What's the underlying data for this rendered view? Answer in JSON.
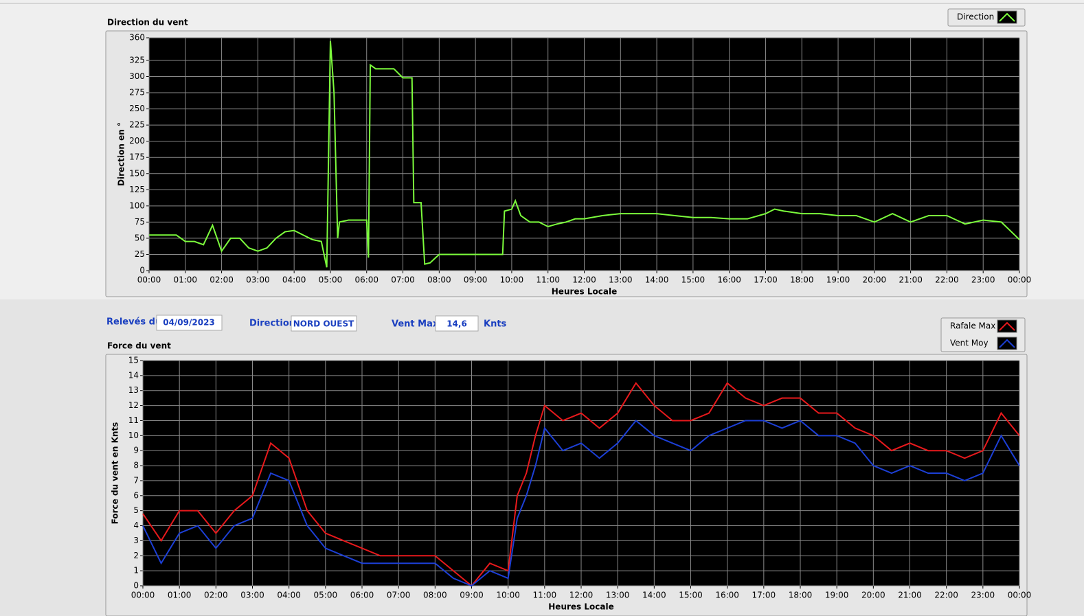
{
  "chart_data": [
    {
      "type": "line",
      "title": "Direction du vent",
      "ylabel": "Direction en °",
      "xlabel": "Heures Locale",
      "x": [
        0,
        0.25,
        0.5,
        0.75,
        1,
        1.25,
        1.5,
        1.75,
        2,
        2.25,
        2.5,
        2.75,
        3,
        3.25,
        3.5,
        3.75,
        4,
        4.25,
        4.5,
        4.75,
        4.9,
        5,
        5.1,
        5.2,
        5.25,
        5.5,
        5.75,
        6,
        6.05,
        6.1,
        6.25,
        6.5,
        6.75,
        7,
        7.25,
        7.3,
        7.5,
        7.6,
        7.75,
        8,
        8.5,
        9,
        9.5,
        9.75,
        9.8,
        10,
        10.1,
        10.25,
        10.5,
        10.75,
        11,
        11.25,
        11.5,
        11.75,
        12,
        12.5,
        13,
        13.5,
        14,
        14.5,
        15,
        15.5,
        16,
        16.5,
        17,
        17.25,
        17.5,
        18,
        18.5,
        19,
        19.5,
        20,
        20.5,
        21,
        21.5,
        22,
        22.5,
        23,
        23.5,
        24
      ],
      "series": [
        {
          "name": "Direction",
          "color": "#7cfc3c",
          "values": [
            55,
            55,
            55,
            55,
            45,
            45,
            40,
            70,
            30,
            50,
            50,
            35,
            30,
            35,
            50,
            60,
            62,
            55,
            48,
            45,
            5,
            355,
            275,
            50,
            75,
            78,
            78,
            78,
            20,
            318,
            312,
            312,
            312,
            298,
            298,
            105,
            105,
            10,
            12,
            25,
            25,
            25,
            25,
            25,
            92,
            95,
            108,
            85,
            75,
            75,
            68,
            72,
            75,
            80,
            80,
            85,
            88,
            88,
            88,
            85,
            82,
            82,
            80,
            80,
            88,
            95,
            92,
            88,
            88,
            85,
            85,
            75,
            88,
            75,
            85,
            85,
            72,
            78,
            75,
            48
          ]
        }
      ],
      "xlim": [
        0,
        24
      ],
      "ylim": [
        0,
        360
      ],
      "xticks": [
        {
          "value": 0,
          "label": "00:00"
        },
        {
          "value": 1,
          "label": "01:00"
        },
        {
          "value": 2,
          "label": "02:00"
        },
        {
          "value": 3,
          "label": "03:00"
        },
        {
          "value": 4,
          "label": "04:00"
        },
        {
          "value": 5,
          "label": "05:00"
        },
        {
          "value": 6,
          "label": "06:00"
        },
        {
          "value": 7,
          "label": "07:00"
        },
        {
          "value": 8,
          "label": "08:00"
        },
        {
          "value": 9,
          "label": "09:00"
        },
        {
          "value": 10,
          "label": "10:00"
        },
        {
          "value": 11,
          "label": "11:00"
        },
        {
          "value": 12,
          "label": "12:00"
        },
        {
          "value": 13,
          "label": "13:00"
        },
        {
          "value": 14,
          "label": "14:00"
        },
        {
          "value": 15,
          "label": "15:00"
        },
        {
          "value": 16,
          "label": "16:00"
        },
        {
          "value": 17,
          "label": "17:00"
        },
        {
          "value": 18,
          "label": "18:00"
        },
        {
          "value": 19,
          "label": "19:00"
        },
        {
          "value": 20,
          "label": "20:00"
        },
        {
          "value": 21,
          "label": "21:00"
        },
        {
          "value": 22,
          "label": "22:00"
        },
        {
          "value": 23,
          "label": "23:00"
        },
        {
          "value": 24,
          "label": "00:00"
        }
      ],
      "yticks": [
        0,
        25,
        50,
        75,
        100,
        125,
        150,
        175,
        200,
        225,
        250,
        275,
        300,
        325,
        360
      ],
      "grid": true
    },
    {
      "type": "line",
      "title": "Force du vent",
      "ylabel": "Force du vent en Knts",
      "xlabel": "Heures Locale",
      "x": [
        0,
        0.5,
        1,
        1.5,
        2,
        2.5,
        3,
        3.5,
        4,
        4.5,
        5,
        5.5,
        6,
        6.5,
        7,
        7.5,
        8,
        8.5,
        9,
        9.5,
        10,
        10.25,
        10.5,
        10.75,
        11,
        11.5,
        12,
        12.5,
        13,
        13.5,
        14,
        14.5,
        15,
        15.5,
        16,
        16.5,
        17,
        17.5,
        18,
        18.5,
        19,
        19.5,
        20,
        20.5,
        21,
        21.5,
        22,
        22.5,
        23,
        23.5,
        24
      ],
      "series": [
        {
          "name": "Rafale Max",
          "color": "#e8191c",
          "values": [
            4.8,
            3,
            5,
            5,
            3.5,
            5,
            6,
            9.5,
            8.5,
            5,
            3.5,
            3,
            2.5,
            2,
            2,
            2,
            2,
            1,
            0,
            1.5,
            1,
            6,
            7.5,
            10,
            12,
            11,
            11.5,
            10.5,
            11.5,
            13.5,
            12,
            11,
            11,
            11.5,
            13.5,
            12.5,
            12,
            12.5,
            12.5,
            11.5,
            11.5,
            10.5,
            10,
            9,
            9.5,
            9,
            9,
            8.5,
            9,
            11.5,
            10
          ]
        },
        {
          "name": "Vent Moy",
          "color": "#1c3fd6",
          "values": [
            4,
            1.5,
            3.5,
            4,
            2.5,
            4,
            4.5,
            7.5,
            7,
            4,
            2.5,
            2,
            1.5,
            1.5,
            1.5,
            1.5,
            1.5,
            0.5,
            0,
            1,
            0.5,
            4.5,
            6,
            8,
            10.5,
            9,
            9.5,
            8.5,
            9.5,
            11,
            10,
            9.5,
            9,
            10,
            10.5,
            11,
            11,
            10.5,
            11,
            10,
            10,
            9.5,
            8,
            7.5,
            8,
            7.5,
            7.5,
            7,
            7.5,
            10,
            8
          ]
        }
      ],
      "xlim": [
        0,
        24
      ],
      "ylim": [
        0,
        15
      ],
      "xticks": [
        {
          "value": 0,
          "label": "00:00"
        },
        {
          "value": 1,
          "label": "01:00"
        },
        {
          "value": 2,
          "label": "02:00"
        },
        {
          "value": 3,
          "label": "03:00"
        },
        {
          "value": 4,
          "label": "04:00"
        },
        {
          "value": 5,
          "label": "05:00"
        },
        {
          "value": 6,
          "label": "06:00"
        },
        {
          "value": 7,
          "label": "07:00"
        },
        {
          "value": 8,
          "label": "08:00"
        },
        {
          "value": 9,
          "label": "09:00"
        },
        {
          "value": 10,
          "label": "10:00"
        },
        {
          "value": 11,
          "label": "11:00"
        },
        {
          "value": 12,
          "label": "12:00"
        },
        {
          "value": 13,
          "label": "13:00"
        },
        {
          "value": 14,
          "label": "14:00"
        },
        {
          "value": 15,
          "label": "15:00"
        },
        {
          "value": 16,
          "label": "16:00"
        },
        {
          "value": 17,
          "label": "17:00"
        },
        {
          "value": 18,
          "label": "18:00"
        },
        {
          "value": 19,
          "label": "19:00"
        },
        {
          "value": 20,
          "label": "20:00"
        },
        {
          "value": 21,
          "label": "21:00"
        },
        {
          "value": 22,
          "label": "22:00"
        },
        {
          "value": 23,
          "label": "23:00"
        },
        {
          "value": 24,
          "label": "00:00"
        }
      ],
      "yticks": [
        0,
        1,
        2,
        3,
        4,
        5,
        6,
        7,
        8,
        9,
        10,
        11,
        12,
        13,
        14,
        15
      ],
      "grid": true
    }
  ],
  "fields": {
    "date_label": "Relevés du",
    "date": "04/09/2023",
    "direction_label": "Direction",
    "direction": "NORD OUEST",
    "vent_max_label": "Vent Max",
    "vent_max": "14,6",
    "unit": "Knts"
  }
}
